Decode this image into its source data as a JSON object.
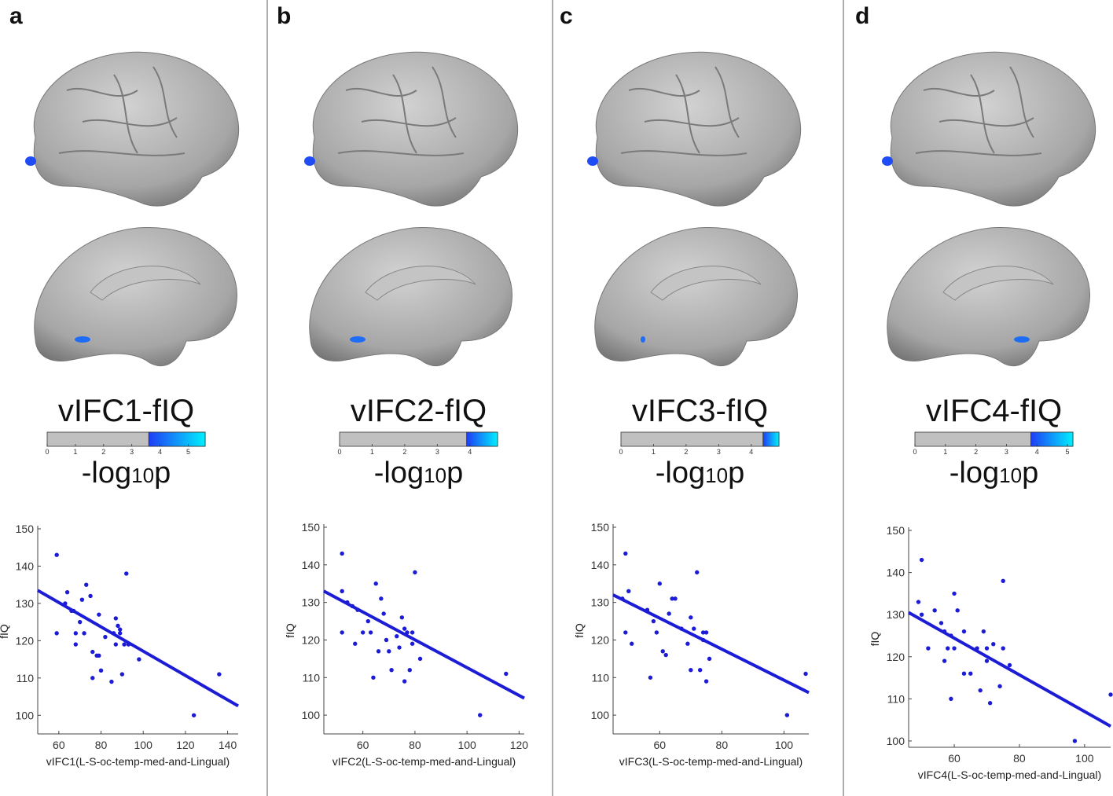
{
  "panels": [
    {
      "letter": "a",
      "title": "vIFC1-fIQ",
      "colorbar": {
        "range": [
          0,
          5.6
        ],
        "threshold": 3.6,
        "ticks": [
          0,
          1,
          2,
          3,
          4,
          5
        ]
      },
      "colorbar_label": [
        "-log",
        "10",
        "p"
      ]
    },
    {
      "letter": "b",
      "title": "vIFC2-fIQ",
      "colorbar": {
        "range": [
          0,
          4.85
        ],
        "threshold": 3.9,
        "ticks": [
          0,
          1,
          2,
          3,
          4
        ]
      },
      "colorbar_label": [
        "-log",
        "10",
        "p"
      ]
    },
    {
      "letter": "c",
      "title": "vIFC3-fIQ",
      "colorbar": {
        "range": [
          0,
          4.85
        ],
        "threshold": 4.36,
        "ticks": [
          0,
          1,
          2,
          3,
          4
        ]
      },
      "colorbar_label": [
        "-log",
        "10",
        "p"
      ]
    },
    {
      "letter": "d",
      "title": "vIFC4-fIQ",
      "colorbar": {
        "range": [
          0,
          5.18
        ],
        "threshold": 3.8,
        "ticks": [
          0,
          1,
          2,
          3,
          4,
          5
        ]
      },
      "colorbar_label": [
        "-log",
        "10",
        "p"
      ]
    }
  ],
  "chart_data": [
    {
      "type": "scatter",
      "x_label": "vIFC1(L-S-oc-temp-med-and-Lingual)",
      "y_label": "fIQ",
      "color": "#1c1cd6",
      "x": [
        59,
        59,
        63,
        64,
        66,
        67,
        68,
        68,
        70,
        71,
        72,
        73,
        75,
        76,
        76,
        78,
        79,
        79,
        80,
        82,
        85,
        86,
        87,
        87,
        88,
        89,
        89,
        90,
        91,
        92,
        93,
        98,
        124,
        136
      ],
      "values": [
        143,
        122,
        130,
        133,
        128,
        128,
        122,
        119,
        125,
        131,
        122,
        135,
        132,
        117,
        110,
        116,
        116,
        127,
        112,
        121,
        109,
        122,
        126,
        119,
        124,
        123,
        122,
        111,
        119,
        138,
        119,
        115,
        100,
        111
      ],
      "fit": {
        "x": [
          50,
          145
        ],
        "values": [
          133.5,
          102.5
        ]
      },
      "xlim": [
        50,
        145
      ],
      "ylim": [
        95,
        150
      ],
      "xticks": [
        60,
        80,
        100,
        120,
        140
      ],
      "yticks": [
        100,
        110,
        120,
        130,
        140,
        150
      ]
    },
    {
      "type": "scatter",
      "x_label": "vIFC2(L-S-oc-temp-med-and-Lingual)",
      "y_label": "fIQ",
      "color": "#1c1cd6",
      "x": [
        52,
        52,
        52,
        54,
        56,
        57,
        58,
        60,
        62,
        63,
        64,
        65,
        66,
        67,
        68,
        69,
        70,
        71,
        73,
        74,
        75,
        76,
        76,
        77,
        78,
        79,
        79,
        80,
        82,
        105,
        115
      ],
      "values": [
        143,
        133,
        122,
        130,
        129,
        119,
        128,
        122,
        125,
        122,
        110,
        135,
        117,
        131,
        127,
        120,
        117,
        112,
        121,
        118,
        126,
        109,
        123,
        122,
        112,
        119,
        122,
        138,
        115,
        100,
        111
      ],
      "fit": {
        "x": [
          45,
          122
        ],
        "values": [
          133,
          104.5
        ]
      },
      "xlim": [
        45,
        122
      ],
      "ylim": [
        95,
        150
      ],
      "xticks": [
        60,
        80,
        100,
        120
      ],
      "yticks": [
        100,
        110,
        120,
        130,
        140,
        150
      ]
    },
    {
      "type": "scatter",
      "x_label": "vIFC3(L-S-oc-temp-med-and-Lingual)",
      "y_label": "fIQ",
      "color": "#1c1cd6",
      "x": [
        48,
        49,
        49,
        50,
        51,
        56,
        57,
        58,
        59,
        60,
        61,
        62,
        63,
        64,
        65,
        67,
        69,
        70,
        70,
        71,
        72,
        73,
        74,
        74,
        75,
        75,
        76,
        101,
        107
      ],
      "values": [
        131,
        143,
        122,
        133,
        119,
        128,
        110,
        125,
        122,
        135,
        117,
        116,
        127,
        131,
        131,
        123,
        119,
        112,
        126,
        123,
        138,
        112,
        120,
        122,
        109,
        122,
        115,
        100,
        111
      ],
      "fit": {
        "x": [
          45,
          108
        ],
        "values": [
          132,
          106
        ]
      },
      "xlim": [
        45,
        108
      ],
      "ylim": [
        95,
        150
      ],
      "xticks": [
        60,
        80,
        100
      ],
      "yticks": [
        100,
        110,
        120,
        130,
        140,
        150
      ]
    },
    {
      "type": "scatter",
      "x_label": "vIFC4(L-S-oc-temp-med-and-Lingual)",
      "y_label": "fIQ",
      "color": "#1c1cd6",
      "x": [
        49,
        50,
        50,
        52,
        54,
        56,
        57,
        57,
        58,
        59,
        59,
        60,
        60,
        61,
        63,
        63,
        65,
        67,
        68,
        69,
        70,
        70,
        71,
        72,
        74,
        75,
        75,
        77,
        97,
        108
      ],
      "values": [
        133,
        143,
        130,
        122,
        131,
        128,
        119,
        126,
        122,
        125,
        110,
        135,
        122,
        131,
        116,
        126,
        116,
        122,
        112,
        126,
        122,
        119,
        109,
        123,
        113,
        138,
        122,
        118,
        100,
        111
      ],
      "fit": {
        "x": [
          46,
          108
        ],
        "values": [
          130.5,
          103.5
        ]
      },
      "xlim": [
        46,
        108
      ],
      "ylim": [
        98.5,
        150
      ],
      "xticks": [
        60,
        80,
        100
      ],
      "yticks": [
        100,
        110,
        120,
        130,
        140,
        150
      ]
    }
  ]
}
